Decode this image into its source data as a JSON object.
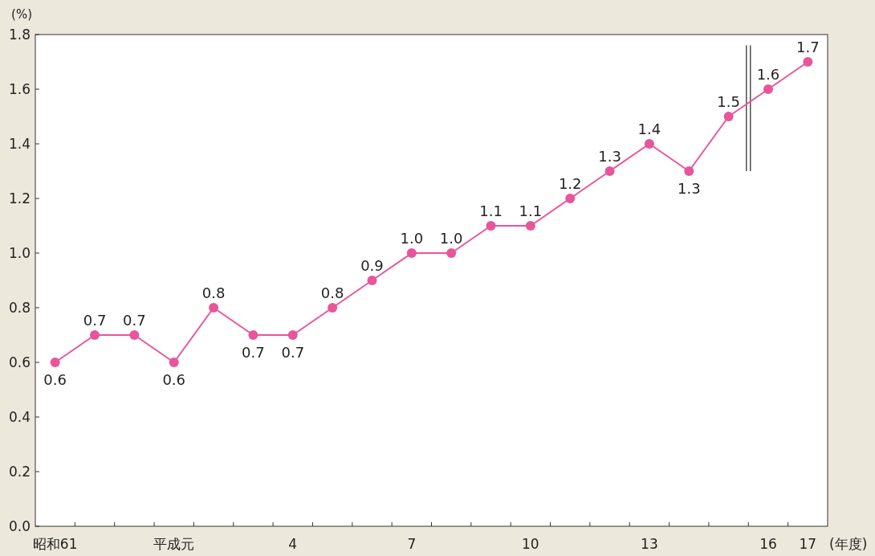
{
  "chart_data": {
    "type": "line",
    "ylabel": "(%)",
    "xlabel": "(年度)",
    "categories": [
      "昭和61",
      null,
      null,
      "平成元",
      null,
      null,
      "4",
      null,
      null,
      "7",
      null,
      null,
      "10",
      null,
      null,
      "13",
      null,
      null,
      "16",
      "17"
    ],
    "series": [
      {
        "color": "#e8559a",
        "values": [
          0.6,
          0.7,
          0.7,
          0.6,
          0.8,
          0.7,
          0.7,
          0.8,
          0.9,
          1.0,
          1.0,
          1.1,
          1.1,
          1.2,
          1.3,
          1.4,
          1.3,
          1.5,
          1.6,
          1.7
        ],
        "value_labels": [
          "0.6",
          "0.7",
          "0.7",
          "0.6",
          "0.8",
          "0.7",
          "0.7",
          "0.8",
          "0.9",
          "1.0",
          "1.0",
          "1.1",
          "1.1",
          "1.2",
          "1.3",
          "1.4",
          "1.3",
          "1.5",
          "1.6",
          "1.7"
        ]
      }
    ],
    "ylim": [
      0,
      1.8
    ],
    "yticks": [
      {
        "value": 0,
        "label": "0.0"
      },
      {
        "value": 0.2,
        "label": "0.2"
      },
      {
        "value": 0.4,
        "label": "0.4"
      },
      {
        "value": 0.6,
        "label": "0.6"
      },
      {
        "value": 0.8,
        "label": "0.8"
      },
      {
        "value": 1.0,
        "label": "1.0"
      },
      {
        "value": 1.2,
        "label": "1.2"
      },
      {
        "value": 1.4,
        "label": "1.4"
      },
      {
        "value": 1.6,
        "label": "1.6"
      },
      {
        "value": 1.8,
        "label": "1.8"
      }
    ],
    "marker": "circle",
    "line_style": "solid",
    "grid": false
  }
}
